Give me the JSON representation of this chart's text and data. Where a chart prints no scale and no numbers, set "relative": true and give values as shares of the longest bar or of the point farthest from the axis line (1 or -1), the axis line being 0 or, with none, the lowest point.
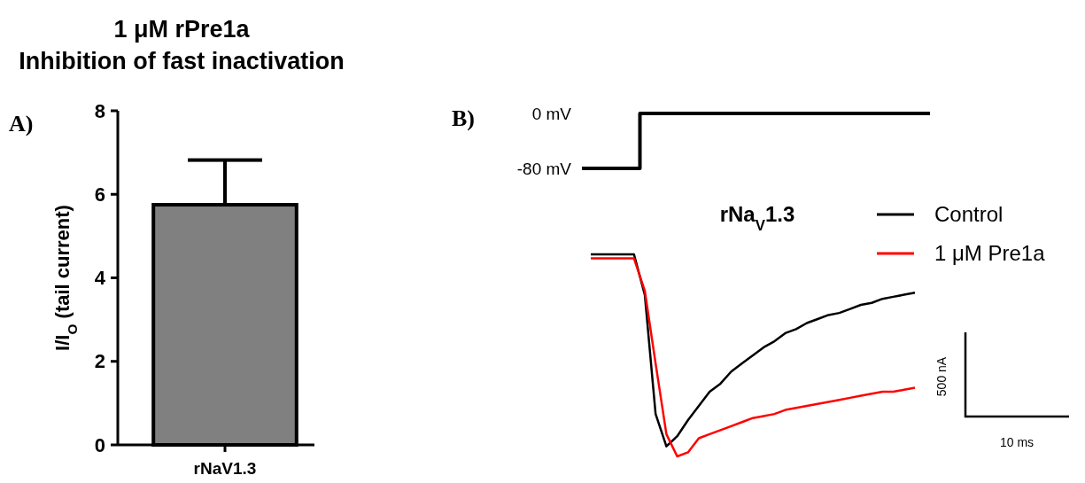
{
  "chart_data": [
    {
      "type": "bar",
      "title": "1 μM rPre1a\nInhibition of fast inactivation",
      "ylabel": "I/I$_{O}$ (tail current)",
      "categories": [
        "rNaV1.3"
      ],
      "values": [
        5.75
      ],
      "errors": [
        [
          5.75,
          6.82
        ]
      ],
      "color": "#808080",
      "ylim": [
        0,
        8
      ],
      "yticks": [
        0,
        2,
        4,
        6,
        8
      ],
      "annotations": [
        "A)"
      ]
    },
    {
      "type": "step",
      "categories": [
        null,
        null,
        null,
        null,
        null,
        null,
        null
      ],
      "values": [
        -80,
        0,
        0,
        0,
        0,
        0,
        0
      ],
      "color": "#000000",
      "ylim": [
        -80,
        0
      ],
      "yticks": [
        {
          "value": -80,
          "label": "-80 mV"
        },
        {
          "value": 0,
          "label": "0 mV"
        }
      ],
      "tick_labels": "y",
      "annotations": [
        "B)"
      ]
    },
    {
      "type": "line",
      "title": "rNa$_{V}$1.3",
      "relative": true,
      "legend": "top right",
      "line_style": "solid",
      "categories": [
        null,
        null,
        null,
        null,
        null,
        null,
        null,
        null,
        null,
        null,
        null,
        null,
        null,
        null,
        null,
        null,
        null,
        null,
        null,
        null,
        null,
        null,
        null,
        null,
        null,
        null,
        null,
        null,
        null,
        null,
        null
      ],
      "series": [
        {
          "name": "Control",
          "color": "#000000",
          "values": [
            1.0,
            1.0,
            1.0,
            1.0,
            1.0,
            0.8,
            0.21,
            0.05,
            0.1,
            0.18,
            0.25,
            0.32,
            0.36,
            0.42,
            0.46,
            0.5,
            0.54,
            0.57,
            0.61,
            0.63,
            0.66,
            0.68,
            0.7,
            0.71,
            0.73,
            0.75,
            0.76,
            0.78,
            0.79,
            0.8,
            0.81
          ]
        },
        {
          "name": "1 μM Pre1a",
          "color": "#ff0000",
          "values": [
            0.98,
            0.98,
            0.98,
            0.98,
            0.98,
            0.82,
            0.46,
            0.11,
            0.0,
            0.02,
            0.09,
            0.11,
            0.13,
            0.15,
            0.17,
            0.19,
            0.2,
            0.21,
            0.23,
            0.24,
            0.25,
            0.26,
            0.27,
            0.28,
            0.29,
            0.3,
            0.31,
            0.32,
            0.32,
            0.33,
            0.34
          ]
        }
      ],
      "annotations": [
        "500 nA",
        "10 ms"
      ]
    }
  ]
}
